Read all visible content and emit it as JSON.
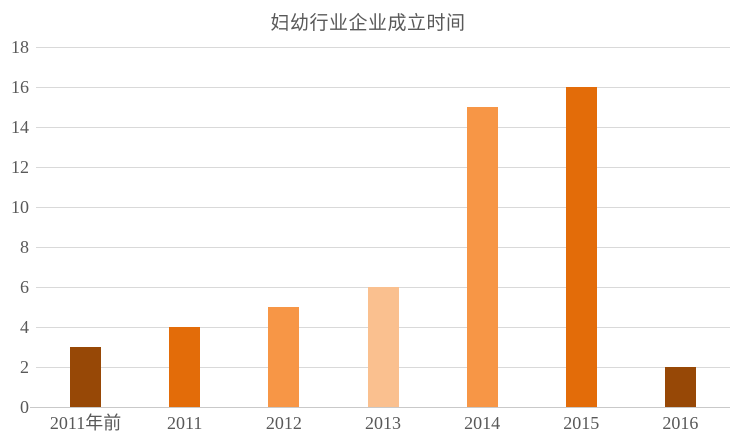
{
  "chart_data": {
    "type": "bar",
    "title": "妇幼行业企业成立时间",
    "categories": [
      "2011年前",
      "2011",
      "2012",
      "2013",
      "2014",
      "2015",
      "2016"
    ],
    "values": [
      3,
      4,
      5,
      6,
      15,
      16,
      2
    ],
    "bar_colors": [
      "#974806",
      "#E36C09",
      "#F79646",
      "#FAC08F",
      "#F79646",
      "#E36C09",
      "#974806"
    ],
    "yticks": [
      0,
      2,
      4,
      6,
      8,
      10,
      12,
      14,
      16,
      18
    ],
    "ylim": [
      0,
      18
    ],
    "xlabel": "",
    "ylabel": "",
    "grid": true,
    "legend": false,
    "colors": {
      "gridline": "#D9D9D9",
      "axis_line": "#C9C9C9",
      "text": "#595959",
      "background": "#FFFFFF"
    }
  }
}
